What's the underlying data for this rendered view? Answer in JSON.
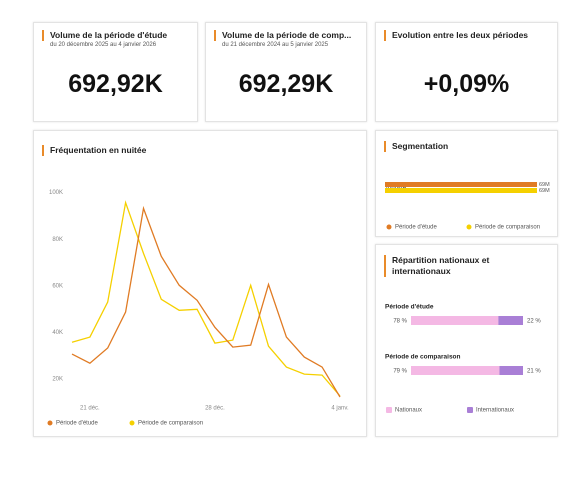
{
  "kpis": [
    {
      "title": "Volume de la période d'étude",
      "subtitle": "du 20 décembre 2025 au 4 janvier 2026",
      "value": "692,92K"
    },
    {
      "title": "Volume de la période de comp...",
      "subtitle": "du 21 décembre 2024 au 5 janvier 2025",
      "value": "692,29K"
    },
    {
      "title": "Evolution entre les deux périodes",
      "value": "+0,09%"
    }
  ],
  "line_chart": {
    "type": "line",
    "title": "Fréquentation en nuitée",
    "categories": [
      null,
      "21 déc.",
      null,
      null,
      null,
      null,
      null,
      null,
      "28 déc.",
      null,
      null,
      null,
      null,
      null,
      null,
      "4 janv."
    ],
    "ylim": [
      11000,
      103000
    ],
    "yticks": [
      {
        "value": 20000,
        "label": "20K"
      },
      {
        "value": 40000,
        "label": "40K"
      },
      {
        "value": 60000,
        "label": "60K"
      },
      {
        "value": 80000,
        "label": "80K"
      },
      {
        "value": 100000,
        "label": "100K"
      }
    ],
    "series": [
      {
        "name": "Période d'étude",
        "color": "#e07b24",
        "values": [
          30700,
          26800,
          33300,
          48700,
          93200,
          72600,
          60200,
          53800,
          42200,
          33700,
          34500,
          60600,
          38000,
          29400,
          25100,
          12300
        ]
      },
      {
        "name": "Période de comparaison",
        "color": "#f5d000",
        "values": [
          35800,
          38000,
          53000,
          95700,
          73900,
          54200,
          49500,
          49900,
          35400,
          36700,
          60200,
          34100,
          25100,
          22100,
          21700,
          12700
        ]
      }
    ]
  },
  "segmentation": {
    "type": "bar",
    "title": "Segmentation",
    "categories": [
      "Touriste"
    ],
    "series": [
      {
        "name": "Période d'étude",
        "color": "#e07b24",
        "values": [
          69000000
        ],
        "value_labels": [
          "69M"
        ]
      },
      {
        "name": "Période de comparaison",
        "color": "#f5d000",
        "values": [
          69000000
        ],
        "value_labels": [
          "69M"
        ]
      }
    ]
  },
  "repartition": {
    "type": "stacked_bar",
    "title": "Répartition nationaux et internationaux",
    "groups": [
      {
        "name": "Période d'étude",
        "values": [
          78,
          22
        ],
        "value_labels": [
          "78 %",
          "22 %"
        ]
      },
      {
        "name": "Période de comparaison",
        "values": [
          79,
          21
        ],
        "value_labels": [
          "79 %",
          "21 %"
        ]
      }
    ],
    "series": [
      {
        "name": "Nationaux",
        "color": "#f4b8e4"
      },
      {
        "name": "Internationaux",
        "color": "#a97fd6"
      }
    ]
  }
}
